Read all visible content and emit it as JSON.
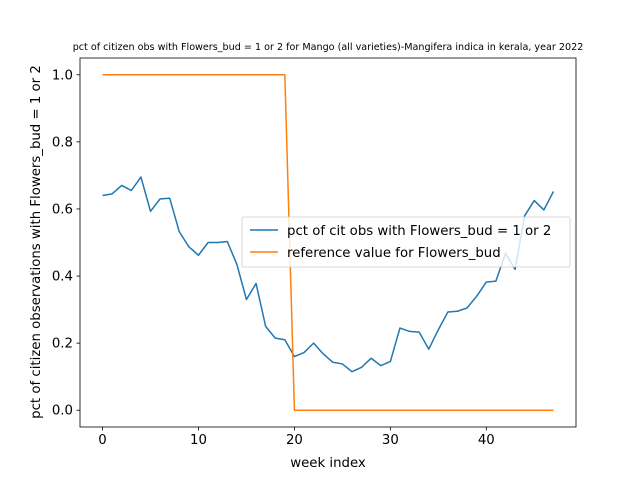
{
  "chart_data": {
    "type": "line",
    "title": "pct of citizen obs with Flowers_bud = 1 or 2 for Mango (all varieties)-Mangifera indica in kerala, year 2022",
    "xlabel": "week index",
    "ylabel": "pct of citizen observations with Flowers_bud = 1 or 2",
    "xlim": [
      -2.35,
      49.35
    ],
    "ylim": [
      -0.05,
      1.05
    ],
    "x_ticks": [
      0,
      10,
      20,
      30,
      40
    ],
    "y_ticks": [
      0.0,
      0.2,
      0.4,
      0.6,
      0.8,
      1.0
    ],
    "x_tick_labels": [
      "0",
      "10",
      "20",
      "30",
      "40"
    ],
    "y_tick_labels": [
      "0.0",
      "0.2",
      "0.4",
      "0.6",
      "0.8",
      "1.0"
    ],
    "grid": false,
    "legend_position": "center-right",
    "series": [
      {
        "name": "pct of cit obs with Flowers_bud = 1 or 2",
        "color": "#1f77b4",
        "x": [
          0,
          1,
          2,
          3,
          4,
          5,
          6,
          7,
          8,
          9,
          10,
          11,
          12,
          13,
          14,
          15,
          16,
          17,
          18,
          19,
          20,
          21,
          22,
          23,
          24,
          25,
          26,
          27,
          28,
          29,
          30,
          31,
          32,
          33,
          34,
          35,
          36,
          37,
          38,
          39,
          40,
          41,
          42,
          43,
          44,
          45,
          46,
          47
        ],
        "values": [
          0.64,
          0.645,
          0.67,
          0.655,
          0.695,
          0.593,
          0.63,
          0.632,
          0.532,
          0.487,
          0.462,
          0.5,
          0.5,
          0.503,
          0.435,
          0.33,
          0.378,
          0.25,
          0.215,
          0.21,
          0.16,
          0.172,
          0.2,
          0.168,
          0.143,
          0.138,
          0.115,
          0.128,
          0.155,
          0.133,
          0.145,
          0.245,
          0.235,
          0.233,
          0.182,
          0.24,
          0.293,
          0.295,
          0.305,
          0.34,
          0.382,
          0.385,
          0.468,
          0.42,
          0.58,
          0.625,
          0.597,
          0.652
        ]
      },
      {
        "name": "reference value for Flowers_bud",
        "color": "#ff7f0e",
        "x": [
          0,
          1,
          2,
          3,
          4,
          5,
          6,
          7,
          8,
          9,
          10,
          11,
          12,
          13,
          14,
          15,
          16,
          17,
          18,
          19,
          20,
          21,
          22,
          23,
          24,
          25,
          26,
          27,
          28,
          29,
          30,
          31,
          32,
          33,
          34,
          35,
          36,
          37,
          38,
          39,
          40,
          41,
          42,
          43,
          44,
          45,
          46,
          47
        ],
        "values": [
          1,
          1,
          1,
          1,
          1,
          1,
          1,
          1,
          1,
          1,
          1,
          1,
          1,
          1,
          1,
          1,
          1,
          1,
          1,
          1,
          0,
          0,
          0,
          0,
          0,
          0,
          0,
          0,
          0,
          0,
          0,
          0,
          0,
          0,
          0,
          0,
          0,
          0,
          0,
          0,
          0,
          0,
          0,
          0,
          0,
          0,
          0,
          0
        ]
      }
    ]
  }
}
